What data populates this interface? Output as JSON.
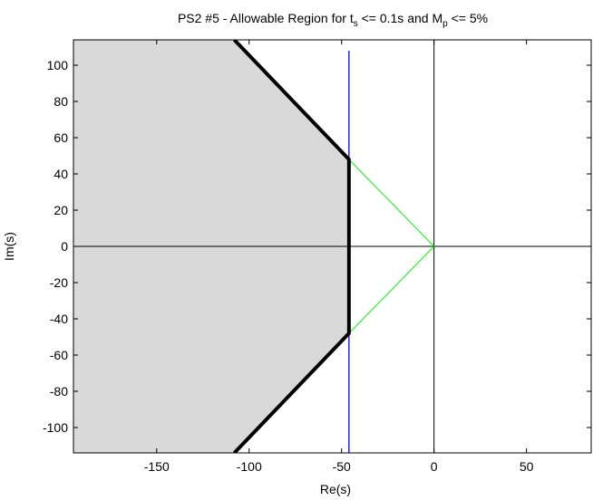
{
  "chart_data": {
    "type": "line",
    "title": {
      "parts": [
        {
          "text": "PS2 #5 - Allowable Region for t"
        },
        {
          "text": "s",
          "sub": true
        },
        {
          "text": " <= 0.1s and M"
        },
        {
          "text": "p",
          "sub": true
        },
        {
          "text": " <= 5%"
        }
      ]
    },
    "xlabel": "Re(s)",
    "ylabel": "Im(s)",
    "xlim": [
      -195,
      85
    ],
    "ylim": [
      -114,
      114
    ],
    "xticks": [
      -150,
      -100,
      -50,
      0,
      50
    ],
    "yticks": [
      100,
      80,
      60,
      40,
      20,
      0,
      -20,
      -40,
      -60,
      -80,
      -100
    ],
    "grid": false,
    "legend": "none",
    "region": {
      "fill": "#d9d9d9",
      "points": [
        [
          -195,
          114
        ],
        [
          -108,
          114
        ],
        [
          -46,
          48
        ],
        [
          -46,
          -48
        ],
        [
          -108,
          -114
        ],
        [
          -195,
          -114
        ]
      ]
    },
    "series": [
      {
        "role": "boundary",
        "color": "#000000",
        "values": [
          [
            -108,
            114
          ],
          [
            -46,
            48
          ],
          [
            -46,
            -48
          ],
          [
            -108,
            -114
          ]
        ]
      },
      {
        "role": "settling-time-line",
        "color": "#0000ff",
        "values": [
          [
            -46,
            108
          ],
          [
            -46,
            -114
          ]
        ]
      },
      {
        "role": "overshoot-line-upper",
        "color": "#00ff00",
        "values": [
          [
            0,
            0
          ],
          [
            -46,
            48
          ]
        ]
      },
      {
        "role": "overshoot-line-lower",
        "color": "#00ff00",
        "values": [
          [
            0,
            0
          ],
          [
            -46,
            -48
          ]
        ]
      },
      {
        "role": "real-axis",
        "color": "#000000",
        "values": [
          [
            -195,
            0
          ],
          [
            85,
            0
          ]
        ]
      },
      {
        "role": "imag-axis",
        "color": "#000000",
        "values": [
          [
            0,
            114
          ],
          [
            0,
            -114
          ]
        ]
      }
    ]
  }
}
